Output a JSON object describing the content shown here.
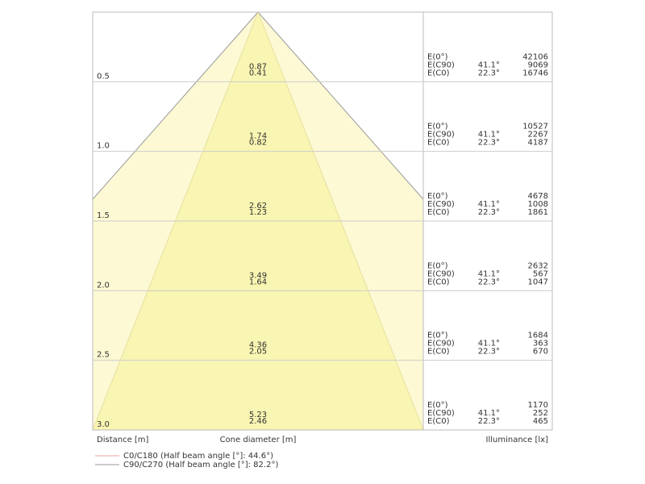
{
  "rows": [
    {
      "distance": "0.5",
      "cone_c90": "0.87",
      "cone_c0": "0.41",
      "labels": [
        "E(0°)",
        "E(C90)",
        "E(C0)"
      ],
      "angles": [
        "41.1°",
        "22.3°"
      ],
      "values": [
        "42106",
        "9069",
        "16746"
      ]
    },
    {
      "distance": "1.0",
      "cone_c90": "1.74",
      "cone_c0": "0.82",
      "labels": [
        "E(0°)",
        "E(C90)",
        "E(C0)"
      ],
      "angles": [
        "41.1°",
        "22.3°"
      ],
      "values": [
        "10527",
        "2267",
        "4187"
      ]
    },
    {
      "distance": "1.5",
      "cone_c90": "2.62",
      "cone_c0": "1.23",
      "labels": [
        "E(0°)",
        "E(C90)",
        "E(C0)"
      ],
      "angles": [
        "41.1°",
        "22.3°"
      ],
      "values": [
        "4678",
        "1008",
        "1861"
      ]
    },
    {
      "distance": "2.0",
      "cone_c90": "3.49",
      "cone_c0": "1.64",
      "labels": [
        "E(0°)",
        "E(C90)",
        "E(C0)"
      ],
      "angles": [
        "41.1°",
        "22.3°"
      ],
      "values": [
        "2632",
        "567",
        "1047"
      ]
    },
    {
      "distance": "2.5",
      "cone_c90": "4.36",
      "cone_c0": "2.05",
      "labels": [
        "E(0°)",
        "E(C90)",
        "E(C0)"
      ],
      "angles": [
        "41.1°",
        "22.3°"
      ],
      "values": [
        "1684",
        "363",
        "670"
      ]
    },
    {
      "distance": "3.0",
      "cone_c90": "5.23",
      "cone_c0": "2.46",
      "labels": [
        "E(0°)",
        "E(C90)",
        "E(C0)"
      ],
      "angles": [
        "41.1°",
        "22.3°"
      ],
      "values": [
        "1170",
        "252",
        "465"
      ]
    }
  ],
  "axis": {
    "distance": "Distance [m]",
    "cone": "Cone diameter [m]",
    "illuminance": "Illuminance [lx]"
  },
  "legend": [
    "C0/C180 (Half beam angle [°]: 44.6°)",
    "C90/C270 (Half beam angle [°]: 82.2°)"
  ]
}
